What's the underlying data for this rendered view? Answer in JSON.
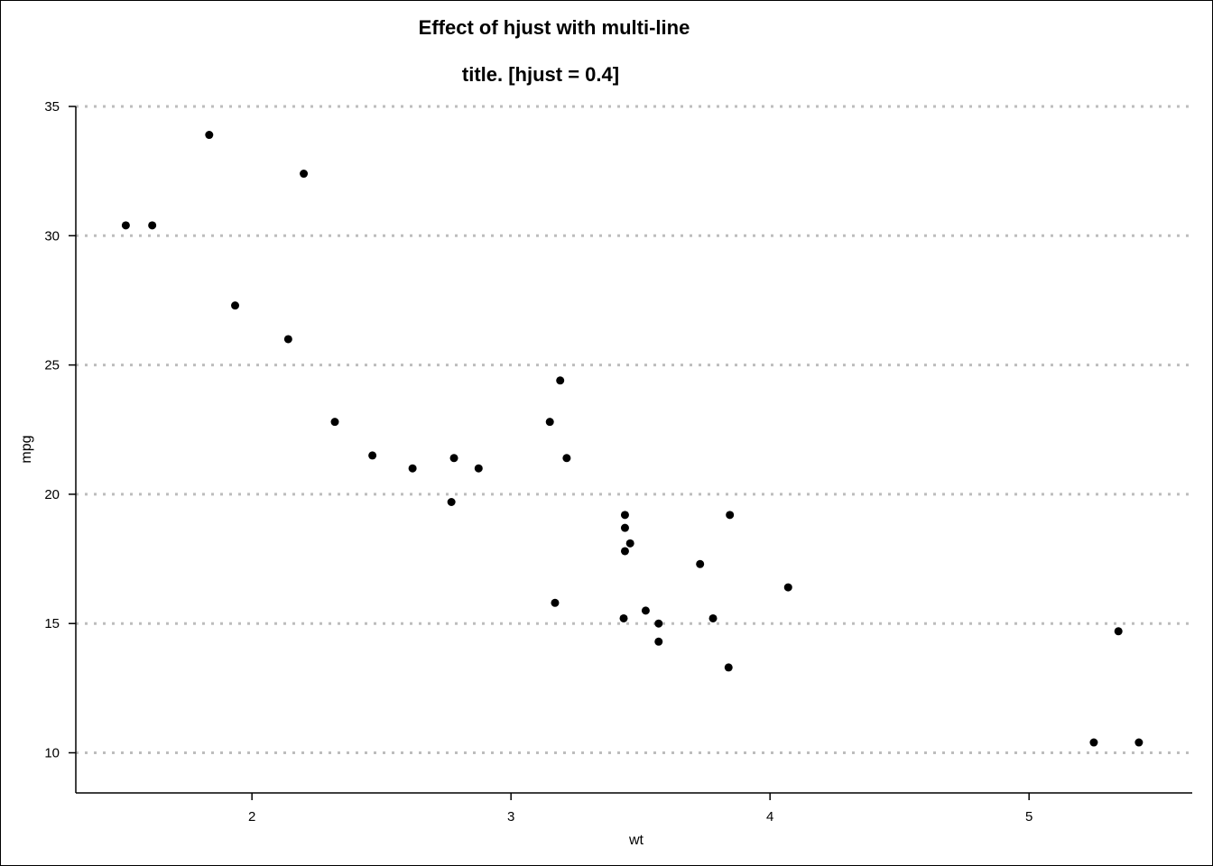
{
  "chart_data": {
    "type": "scatter",
    "title_lines": [
      "Effect of hjust with multi-line",
      "title. [hjust = 0.4]"
    ],
    "xlabel": "wt",
    "ylabel": "mpg",
    "xlim": [
      1.32,
      5.63
    ],
    "ylim": [
      9.25,
      35.0
    ],
    "xticks": [
      2,
      3,
      4,
      5
    ],
    "yticks": [
      10,
      15,
      20,
      25,
      30,
      35
    ],
    "grid": "horizontal-dotted",
    "points": [
      {
        "x": 2.62,
        "y": 21.0
      },
      {
        "x": 2.875,
        "y": 21.0
      },
      {
        "x": 2.32,
        "y": 22.8
      },
      {
        "x": 3.215,
        "y": 21.4
      },
      {
        "x": 3.44,
        "y": 18.7
      },
      {
        "x": 3.46,
        "y": 18.1
      },
      {
        "x": 3.57,
        "y": 14.3
      },
      {
        "x": 3.19,
        "y": 24.4
      },
      {
        "x": 3.15,
        "y": 22.8
      },
      {
        "x": 3.44,
        "y": 19.2
      },
      {
        "x": 3.44,
        "y": 17.8
      },
      {
        "x": 4.07,
        "y": 16.4
      },
      {
        "x": 3.73,
        "y": 17.3
      },
      {
        "x": 3.78,
        "y": 15.2
      },
      {
        "x": 5.25,
        "y": 10.4
      },
      {
        "x": 5.424,
        "y": 10.4
      },
      {
        "x": 5.345,
        "y": 14.7
      },
      {
        "x": 2.2,
        "y": 32.4
      },
      {
        "x": 1.615,
        "y": 30.4
      },
      {
        "x": 1.835,
        "y": 33.9
      },
      {
        "x": 2.465,
        "y": 21.5
      },
      {
        "x": 3.52,
        "y": 15.5
      },
      {
        "x": 3.435,
        "y": 15.2
      },
      {
        "x": 3.84,
        "y": 13.3
      },
      {
        "x": 3.845,
        "y": 19.2
      },
      {
        "x": 1.935,
        "y": 27.3
      },
      {
        "x": 2.14,
        "y": 26.0
      },
      {
        "x": 1.513,
        "y": 30.4
      },
      {
        "x": 3.17,
        "y": 15.8
      },
      {
        "x": 2.77,
        "y": 19.7
      },
      {
        "x": 3.57,
        "y": 15.0
      },
      {
        "x": 2.78,
        "y": 21.4
      }
    ]
  }
}
